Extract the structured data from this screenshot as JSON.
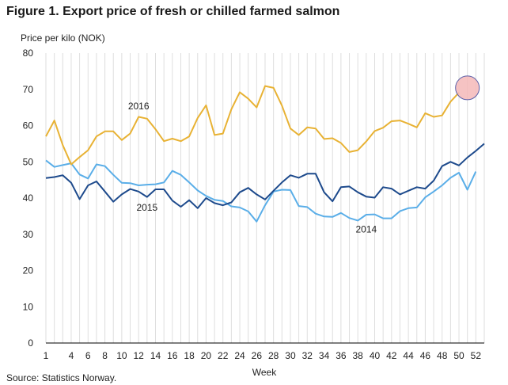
{
  "header": {
    "title": "Figure 1. Export price of fresh or chilled farmed salmon"
  },
  "footer": {
    "source": "Source: Statistics Norway."
  },
  "chart_data": {
    "type": "line",
    "title": "Figure 1. Export price of fresh or chilled farmed salmon",
    "ylabel": "Price per kilo (NOK)",
    "xlabel": "Week",
    "ylim": [
      0,
      80
    ],
    "yticks": [
      0,
      10,
      20,
      30,
      40,
      50,
      60,
      70,
      80
    ],
    "xlim": [
      1,
      53
    ],
    "xticks": [
      1,
      4,
      6,
      8,
      10,
      12,
      14,
      16,
      18,
      20,
      22,
      24,
      26,
      28,
      30,
      32,
      34,
      36,
      38,
      40,
      42,
      44,
      46,
      48,
      50,
      52
    ],
    "grid": "vertical",
    "highlight": {
      "series": "2016",
      "week": 51,
      "value": 70.4,
      "color": "#f4b8b8",
      "border": "#5a5fa8"
    },
    "series": [
      {
        "name": "2016",
        "color": "#e8b234",
        "values": [
          57.0,
          61.4,
          54.6,
          49.3,
          51.3,
          53.2,
          57.0,
          58.4,
          58.4,
          56.0,
          57.8,
          62.4,
          61.9,
          59.0,
          55.7,
          56.4,
          55.7,
          57.0,
          62.1,
          65.6,
          57.4,
          57.8,
          64.5,
          69.2,
          67.4,
          65.0,
          70.9,
          70.4,
          65.5,
          59.2,
          57.4,
          59.5,
          59.2,
          56.3,
          56.5,
          55.2,
          52.7,
          53.2,
          55.6,
          58.5,
          59.4,
          61.2,
          61.4,
          60.5,
          59.5,
          63.4,
          62.4,
          62.8,
          66.6,
          69.1
        ]
      },
      {
        "name": "2015",
        "color": "#1d4a8c",
        "values": [
          45.5,
          45.8,
          46.3,
          44.2,
          39.7,
          43.5,
          44.6,
          41.8,
          39.0,
          41.0,
          42.5,
          41.8,
          40.3,
          42.4,
          42.4,
          39.3,
          37.6,
          39.4,
          37.2,
          40.0,
          38.6,
          38.0,
          38.8,
          41.6,
          42.8,
          41.0,
          39.6,
          42.0,
          44.3,
          46.3,
          45.6,
          46.7,
          46.7,
          41.6,
          39.1,
          43.0,
          43.2,
          41.6,
          40.4,
          40.1,
          43.0,
          42.6,
          41.0,
          42.0,
          43.0,
          42.6,
          44.8,
          48.8,
          50.0,
          49.0,
          51.2,
          53.0,
          55.0
        ]
      },
      {
        "name": "2014",
        "color": "#5aaee8",
        "values": [
          50.4,
          48.6,
          49.1,
          49.6,
          46.5,
          45.4,
          49.3,
          48.8,
          46.4,
          44.2,
          44.1,
          43.5,
          43.7,
          43.8,
          44.3,
          47.5,
          46.4,
          44.3,
          42.1,
          40.6,
          39.5,
          39.2,
          37.7,
          37.4,
          36.3,
          33.5,
          38.0,
          41.8,
          42.3,
          42.2,
          37.8,
          37.5,
          35.7,
          34.9,
          34.8,
          35.9,
          34.5,
          33.8,
          35.4,
          35.5,
          34.4,
          34.4,
          36.4,
          37.2,
          37.4,
          40.2,
          41.8,
          43.5,
          45.6,
          47.0,
          42.3,
          47.3
        ]
      }
    ]
  }
}
